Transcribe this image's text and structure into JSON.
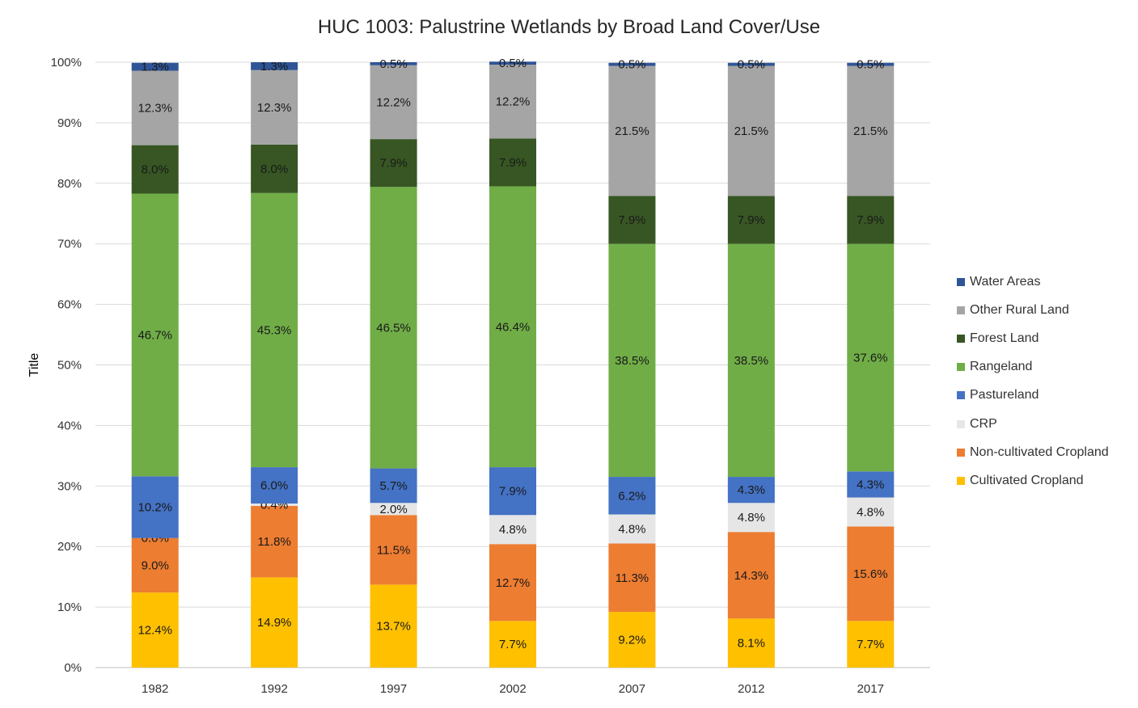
{
  "chart_data": {
    "type": "bar",
    "stacked": true,
    "percent": true,
    "title": "HUC 1003: Palustrine Wetlands by Broad Land Cover/Use",
    "xlabel": "",
    "ylabel": "Title",
    "ylim": [
      0,
      100
    ],
    "y_ticks": [
      "0%",
      "10%",
      "20%",
      "30%",
      "40%",
      "50%",
      "60%",
      "70%",
      "80%",
      "90%",
      "100%"
    ],
    "grid": true,
    "legend_position": "right",
    "categories": [
      "1982",
      "1992",
      "1997",
      "2002",
      "2007",
      "2012",
      "2017"
    ],
    "series": [
      {
        "name": "Cultivated Cropland",
        "color": "#FFC000",
        "values": [
          12.4,
          14.9,
          13.7,
          7.7,
          9.2,
          8.1,
          7.7
        ],
        "labels": [
          "12.4%",
          "14.9%",
          "13.7%",
          "7.7%",
          "9.2%",
          "8.1%",
          "7.7%"
        ]
      },
      {
        "name": "Non-cultivated Cropland",
        "color": "#ED7D31",
        "values": [
          9.0,
          11.8,
          11.5,
          12.7,
          11.3,
          14.3,
          15.6
        ],
        "labels": [
          "9.0%",
          "11.8%",
          "11.5%",
          "12.7%",
          "11.3%",
          "14.3%",
          "15.6%"
        ]
      },
      {
        "name": "CRP",
        "color": "#E7E6E6",
        "values": [
          0.0,
          0.4,
          2.0,
          4.8,
          4.8,
          4.8,
          4.8
        ],
        "labels": [
          "0.0%",
          "0.4%",
          "2.0%",
          "4.8%",
          "4.8%",
          "4.8%",
          "4.8%"
        ]
      },
      {
        "name": "Pastureland",
        "color": "#4472C4",
        "values": [
          10.2,
          6.0,
          5.7,
          7.9,
          6.2,
          4.3,
          4.3
        ],
        "labels": [
          "10.2%",
          "6.0%",
          "5.7%",
          "7.9%",
          "6.2%",
          "4.3%",
          "4.3%"
        ]
      },
      {
        "name": "Rangeland",
        "color": "#70AD47",
        "values": [
          46.7,
          45.3,
          46.5,
          46.4,
          38.5,
          38.5,
          37.6
        ],
        "labels": [
          "46.7%",
          "45.3%",
          "46.5%",
          "46.4%",
          "38.5%",
          "38.5%",
          "37.6%"
        ]
      },
      {
        "name": "Forest Land",
        "color": "#375623",
        "values": [
          8.0,
          8.0,
          7.9,
          7.9,
          7.9,
          7.9,
          7.9
        ],
        "labels": [
          "8.0%",
          "8.0%",
          "7.9%",
          "7.9%",
          "7.9%",
          "7.9%",
          "7.9%"
        ]
      },
      {
        "name": "Other Rural Land",
        "color": "#A5A5A5",
        "values": [
          12.3,
          12.3,
          12.2,
          12.2,
          21.5,
          21.5,
          21.5
        ],
        "labels": [
          "12.3%",
          "12.3%",
          "12.2%",
          "12.2%",
          "21.5%",
          "21.5%",
          "21.5%"
        ]
      },
      {
        "name": "Water Areas",
        "color": "#2F5597",
        "values": [
          1.3,
          1.3,
          0.5,
          0.5,
          0.5,
          0.5,
          0.5
        ],
        "labels": [
          "1.3%",
          "1.3%",
          "0.5%",
          "0.5%",
          "0.5%",
          "0.5%",
          "0.5%"
        ]
      }
    ]
  }
}
